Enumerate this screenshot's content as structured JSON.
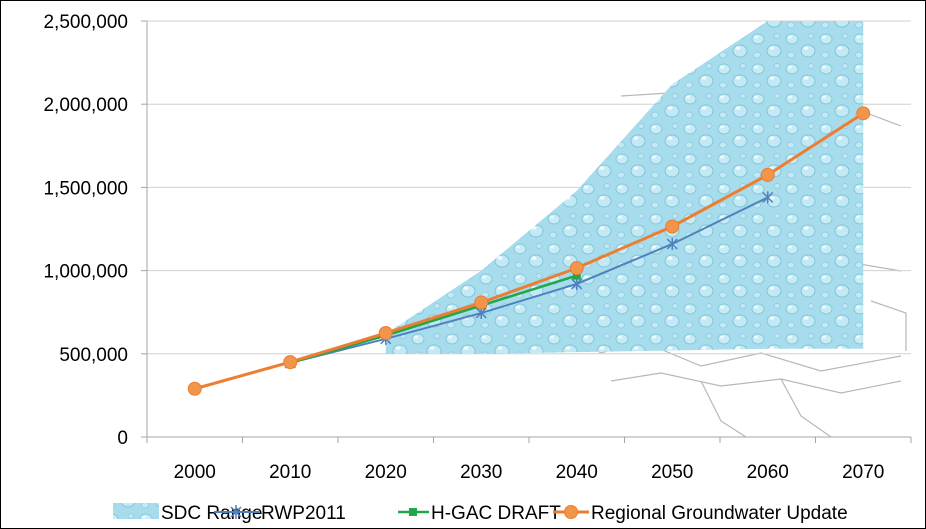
{
  "chart_data": {
    "type": "line",
    "title": "",
    "xlabel": "",
    "ylabel": "",
    "x": [
      2000,
      2010,
      2020,
      2030,
      2040,
      2050,
      2060,
      2070
    ],
    "x_tick_labels": [
      "2000",
      "2010",
      "2020",
      "2030",
      "2040",
      "2050",
      "2060",
      "2070"
    ],
    "ylim": [
      0,
      2500000
    ],
    "y_ticks": [
      0,
      500000,
      1000000,
      1500000,
      2000000,
      2500000
    ],
    "y_tick_labels": [
      "0",
      "500,000",
      "1,000,000",
      "1,500,000",
      "2,000,000",
      "2,500,000"
    ],
    "grid": "horizontal",
    "legend_position": "bottom",
    "sdc_range": {
      "name": "SDC Range",
      "x": [
        2020,
        2030,
        2040,
        2050,
        2060,
        2070
      ],
      "upper": [
        620000,
        1000000,
        1480000,
        2120000,
        2500000,
        2500000
      ],
      "lower": [
        500000,
        500000,
        510000,
        520000,
        530000,
        530000
      ]
    },
    "series": [
      {
        "name": "RWP2011",
        "x": [
          2010,
          2020,
          2030,
          2040,
          2050,
          2060
        ],
        "values": [
          445000,
          590000,
          745000,
          920000,
          1160000,
          1440000
        ]
      },
      {
        "name": "H-GAC DRAFT",
        "x": [
          2010,
          2020,
          2030,
          2040
        ],
        "values": [
          445000,
          610000,
          790000,
          970000
        ]
      },
      {
        "name": "Regional Groundwater Update",
        "x": [
          2000,
          2010,
          2020,
          2030,
          2040,
          2050,
          2060,
          2070
        ],
        "values": [
          290000,
          450000,
          625000,
          808000,
          1015000,
          1265000,
          1575000,
          1945000
        ]
      }
    ]
  },
  "colors": {
    "sdc_fill": "#a7dcec",
    "sdc_highlight": "#d8f1f8",
    "rwp2011": "#4f81bd",
    "hgac": "#22a64a",
    "groundwater": "#ed7d31",
    "groundwater_marker": "#f0954a",
    "grid": "#d0d0d0",
    "axis": "#a6a6a6",
    "map_lines": "#b7b7b7"
  }
}
